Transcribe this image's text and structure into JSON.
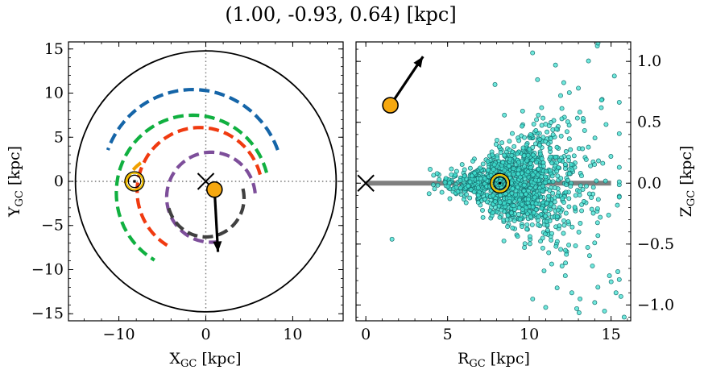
{
  "figure": {
    "title": "(1.00, -0.93, 0.64) [kpc]",
    "star_position": {
      "x_kpc": 1.0,
      "y_kpc": -0.93,
      "z_kpc": 0.64,
      "r_kpc": 1.37
    }
  },
  "colors": {
    "arm_outer": "#1565a8",
    "arm_green": "#10b040",
    "arm_orange": "#f0a000",
    "arm_red": "#f03a10",
    "arm_purple": "#7d4e9a",
    "arm_inner": "#404040",
    "star_fill": "#f5a810",
    "cluster_fill": "#40e0d0",
    "cluster_edge": "#187070",
    "plane_line": "#7f7f7f",
    "sun_marker": "#f0c000"
  },
  "chart_data": [
    {
      "type": "scatter",
      "panel": "face-on",
      "xlabel": "X",
      "xlabel_sub": "GC",
      "xlabel_unit": " [kpc]",
      "ylabel": "Y",
      "ylabel_sub": "GC",
      "ylabel_unit": " [kpc]",
      "xlim": [
        -15.8,
        15.8
      ],
      "ylim": [
        -15.8,
        15.8
      ],
      "xticks": [
        -10,
        0,
        10
      ],
      "yticks": [
        -15,
        -10,
        -5,
        0,
        5,
        10,
        15
      ],
      "xtick_labels": [
        "−10",
        "0",
        "10"
      ],
      "ytick_labels": [
        "−15",
        "−10",
        "−5",
        "0",
        "5",
        "10",
        "15"
      ],
      "disk_radius": 15,
      "galactic_center": {
        "x": 0,
        "y": 0
      },
      "sun": {
        "x": -8.2,
        "y": 0
      },
      "star": {
        "x": 1.0,
        "y": -0.93
      },
      "velocity_arrow": {
        "from": [
          1.0,
          -0.93
        ],
        "to": [
          1.4,
          -8.0
        ]
      },
      "spiral_arms": [
        {
          "color_key": "arm_outer",
          "radius": 10.4,
          "angle_start": 20,
          "angle_end": 160,
          "center": [
            -1.5,
            0
          ]
        },
        {
          "color_key": "arm_green",
          "radius": 8.8,
          "angle_start": 15,
          "angle_end": 240,
          "center": [
            -1.5,
            -1.3
          ]
        },
        {
          "color_key": "arm_orange",
          "radius": 5.0,
          "angle_start": 125,
          "angle_end": 165,
          "center": [
            -4.6,
            -2.0
          ]
        },
        {
          "color_key": "arm_red",
          "radius": 7.2,
          "angle_start": 15,
          "angle_end": 240,
          "center": [
            -0.7,
            -1.1
          ]
        },
        {
          "color_key": "arm_purple",
          "radius": 5.1,
          "angle_start": 5,
          "angle_end": 280,
          "center": [
            0.6,
            -1.8
          ]
        },
        {
          "color_key": "arm_inner",
          "radius": 4.4,
          "angle_start": -165,
          "angle_end": 15,
          "center": [
            0.0,
            -1.9
          ]
        }
      ]
    },
    {
      "type": "scatter",
      "panel": "edge-on",
      "xlabel": "R",
      "xlabel_sub": "GC",
      "xlabel_unit": " [kpc]",
      "ylabel": "Z",
      "ylabel_sub": "GC",
      "ylabel_unit": " [kpc]",
      "xlim": [
        -0.6,
        16.2
      ],
      "ylim": [
        -1.13,
        1.16
      ],
      "xticks": [
        0,
        5,
        10,
        15
      ],
      "yticks": [
        -1.0,
        -0.5,
        0.0,
        0.5,
        1.0
      ],
      "xtick_labels": [
        "0",
        "5",
        "10",
        "15"
      ],
      "ytick_labels": [
        "−1.0",
        "−0.5",
        "0.0",
        "0.5",
        "1.0"
      ],
      "galactic_center": {
        "r": 0,
        "z": 0
      },
      "sun": {
        "r": 8.2,
        "z": 0
      },
      "star": {
        "r": 1.5,
        "z": 0.64
      },
      "velocity_arrow": {
        "from": [
          1.5,
          0.64
        ],
        "to": [
          3.5,
          1.04
        ]
      },
      "plane_line": {
        "r_start": 0,
        "r_end": 15,
        "z": 0
      },
      "cluster_points": {
        "count": 1400,
        "peak_r": 8.5,
        "note_not_rendered": ""
      },
      "outliers": [
        [
          10.2,
          1.07
        ],
        [
          11.6,
          0.97
        ],
        [
          14.2,
          1.15
        ],
        [
          15.2,
          0.88
        ],
        [
          13.0,
          0.78
        ],
        [
          7.9,
          0.81
        ],
        [
          10.5,
          0.85
        ],
        [
          14.4,
          0.62
        ],
        [
          1.6,
          -0.46
        ],
        [
          12.0,
          -0.68
        ],
        [
          14.0,
          -0.98
        ],
        [
          13.1,
          -0.95
        ],
        [
          12.6,
          -0.9
        ],
        [
          11.7,
          -0.86
        ],
        [
          15.3,
          -0.9
        ],
        [
          15.6,
          -0.93
        ],
        [
          14.9,
          -0.76
        ],
        [
          12.2,
          -0.76
        ],
        [
          10.9,
          -0.72
        ],
        [
          15.8,
          -1.1
        ],
        [
          14.6,
          -1.05
        ],
        [
          12.9,
          -1.03
        ],
        [
          11.0,
          -1.02
        ]
      ]
    }
  ]
}
